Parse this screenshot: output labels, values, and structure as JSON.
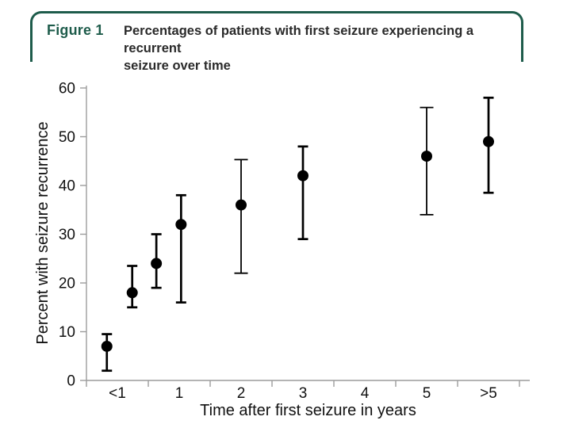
{
  "figure_header": {
    "label": "Figure 1",
    "title_lines": [
      "Percentages of patients with first seizure experiencing a recurrent",
      "seizure over time"
    ],
    "accent_color": "#1e5c4b",
    "title_color": "#2a2a2a"
  },
  "chart_data": {
    "type": "scatter",
    "title": "Percentages of patients with first seizure experiencing a recurrent seizure over time",
    "xlabel": "Time after first seizure in years",
    "ylabel": "Percent with seizure recurrence",
    "x_categories": [
      "<1",
      "1",
      "2",
      "3",
      "4",
      "5",
      ">5"
    ],
    "ylim": [
      0,
      60
    ],
    "yticks": [
      0,
      10,
      20,
      30,
      40,
      50,
      60
    ],
    "grid": false,
    "legend": "none",
    "marker": "filled-circle",
    "error_bars": true,
    "points": [
      {
        "x_slot": 0.33,
        "category": "<1",
        "value": 7,
        "ci_low": 2,
        "ci_high": 9.5,
        "style": "bold"
      },
      {
        "x_slot": 0.74,
        "category": "<1",
        "value": 18,
        "ci_low": 15,
        "ci_high": 23.5,
        "style": "bold"
      },
      {
        "x_slot": 1.13,
        "category": "1",
        "value": 24,
        "ci_low": 19,
        "ci_high": 30,
        "style": "bold"
      },
      {
        "x_slot": 1.53,
        "category": "1",
        "value": 32,
        "ci_low": 16,
        "ci_high": 38,
        "style": "bold"
      },
      {
        "x_slot": 2.5,
        "category": "2",
        "value": 36,
        "ci_low": 22,
        "ci_high": 45.3,
        "style": "light"
      },
      {
        "x_slot": 3.5,
        "category": "3",
        "value": 42,
        "ci_low": 29,
        "ci_high": 48,
        "style": "bold"
      },
      {
        "x_slot": 5.5,
        "category": "5",
        "value": 46,
        "ci_low": 34,
        "ci_high": 56,
        "style": "light"
      },
      {
        "x_slot": 6.5,
        "category": ">5",
        "value": 49,
        "ci_low": 38.5,
        "ci_high": 58,
        "style": "bold"
      }
    ],
    "marker_color": "#000000",
    "axis_color": "#9c9c9c",
    "tick_label_color": "#111111"
  }
}
